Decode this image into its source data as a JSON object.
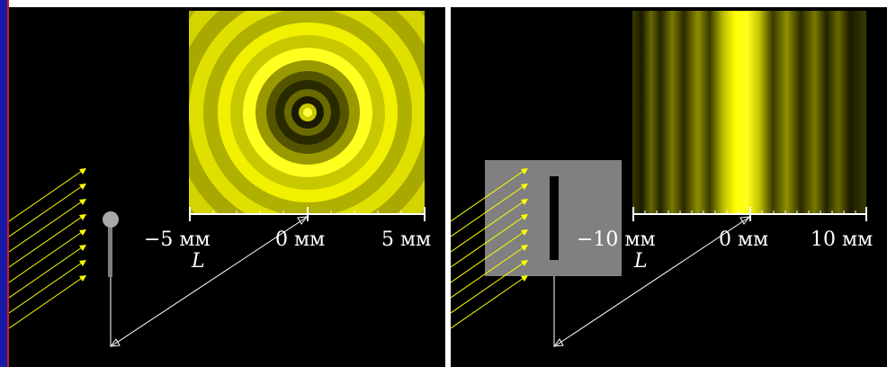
{
  "left_panel": {
    "ticks": [
      "−5 мм",
      "0 мм",
      "5 мм"
    ],
    "distance_label": "L"
  },
  "right_panel": {
    "ticks": [
      "−10 мм",
      "0 мм",
      "10 мм"
    ],
    "distance_label": "L"
  },
  "colors": {
    "background": "#000000",
    "pattern": "#ffff00",
    "obstacle_screen": "#808080",
    "rays": "#ffff00"
  }
}
